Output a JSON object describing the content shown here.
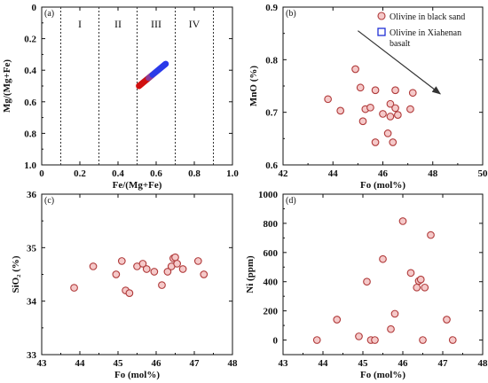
{
  "colors": {
    "olivine_fill": "#f5c9c9",
    "olivine_edge": "#b03a3a",
    "basalt": "#1f2fd6",
    "gradient": [
      "#1a1aff",
      "#3344ee",
      "#7a44b0",
      "#b32020",
      "#e00000"
    ],
    "dotted": "#333333",
    "arrow": "#333333"
  },
  "chart_data": [
    {
      "id": "a",
      "type": "scatter",
      "panel_label": "(a)",
      "xlabel": "Fe/(Mg+Fe)",
      "ylabel": "Mg/(Mg+Fe)",
      "xlim": [
        0,
        1
      ],
      "ylim": [
        1,
        0
      ],
      "y_inverted": true,
      "x_ticks": [
        "0",
        "0.2",
        "0.4",
        "0.6",
        "0.8",
        "1.0"
      ],
      "y_ticks": [
        "0",
        "0.2",
        "0.4",
        "0.6",
        "0.8",
        "1.0"
      ],
      "x_tick_values": [
        0,
        0.2,
        0.4,
        0.6,
        0.8,
        1.0
      ],
      "y_tick_values": [
        0,
        0.2,
        0.4,
        0.6,
        0.8,
        1.0
      ],
      "divider_x": [
        0.1,
        0.3,
        0.5,
        0.7,
        0.9
      ],
      "zones": [
        {
          "label": "I",
          "x": 0.2
        },
        {
          "label": "II",
          "x": 0.4
        },
        {
          "label": "III",
          "x": 0.6
        },
        {
          "label": "IV",
          "x": 0.8
        }
      ],
      "zone_label_y": 0.13,
      "trend": {
        "x": [
          0.51,
          0.65
        ],
        "y": [
          0.5,
          0.36
        ]
      },
      "grid": false
    },
    {
      "id": "b",
      "type": "scatter",
      "panel_label": "(b)",
      "xlabel": "Fo (mol%)",
      "ylabel": "MnO (%)",
      "xlim": [
        42,
        50
      ],
      "ylim": [
        0.6,
        0.9
      ],
      "x_ticks": [
        "42",
        "44",
        "46",
        "48",
        "50"
      ],
      "y_ticks": [
        "0.6",
        "0.7",
        "0.8",
        "0.9"
      ],
      "x_tick_values": [
        42,
        44,
        46,
        48,
        50
      ],
      "y_tick_values": [
        0.6,
        0.7,
        0.8,
        0.9
      ],
      "legend": [
        {
          "label": "Olivine in black sand",
          "marker": "circle"
        },
        {
          "label": "Olivine in Xiahenan basalt",
          "marker": "square"
        }
      ],
      "legend_position": "top-right",
      "arrow": {
        "from": [
          45.0,
          0.855
        ],
        "to": [
          48.3,
          0.735
        ]
      },
      "points": [
        {
          "x": 43.8,
          "y": 0.725
        },
        {
          "x": 44.3,
          "y": 0.703
        },
        {
          "x": 44.9,
          "y": 0.782
        },
        {
          "x": 45.1,
          "y": 0.747
        },
        {
          "x": 45.2,
          "y": 0.683
        },
        {
          "x": 45.3,
          "y": 0.706
        },
        {
          "x": 45.5,
          "y": 0.709
        },
        {
          "x": 45.7,
          "y": 0.643
        },
        {
          "x": 45.7,
          "y": 0.742
        },
        {
          "x": 46.0,
          "y": 0.697
        },
        {
          "x": 46.2,
          "y": 0.66
        },
        {
          "x": 46.3,
          "y": 0.692
        },
        {
          "x": 46.3,
          "y": 0.716
        },
        {
          "x": 46.4,
          "y": 0.643
        },
        {
          "x": 46.5,
          "y": 0.708
        },
        {
          "x": 46.5,
          "y": 0.742
        },
        {
          "x": 46.6,
          "y": 0.695
        },
        {
          "x": 47.1,
          "y": 0.706
        },
        {
          "x": 47.2,
          "y": 0.737
        }
      ],
      "grid": false
    },
    {
      "id": "c",
      "type": "scatter",
      "panel_label": "(c)",
      "xlabel": "Fo (mol%)",
      "ylabel": "SiO₂ (%)",
      "xlim": [
        43,
        48
      ],
      "ylim": [
        33,
        36
      ],
      "x_ticks": [
        "43",
        "44",
        "45",
        "46",
        "47",
        "48"
      ],
      "y_ticks": [
        "33",
        "34",
        "35",
        "36"
      ],
      "x_tick_values": [
        43,
        44,
        45,
        46,
        47,
        48
      ],
      "y_tick_values": [
        33,
        34,
        35,
        36
      ],
      "points": [
        {
          "x": 43.85,
          "y": 34.25
        },
        {
          "x": 44.35,
          "y": 34.65
        },
        {
          "x": 44.95,
          "y": 34.5
        },
        {
          "x": 45.1,
          "y": 34.75
        },
        {
          "x": 45.2,
          "y": 34.2
        },
        {
          "x": 45.3,
          "y": 34.15
        },
        {
          "x": 45.5,
          "y": 34.65
        },
        {
          "x": 45.65,
          "y": 34.7
        },
        {
          "x": 45.75,
          "y": 34.6
        },
        {
          "x": 45.95,
          "y": 34.55
        },
        {
          "x": 46.15,
          "y": 34.3
        },
        {
          "x": 46.3,
          "y": 34.55
        },
        {
          "x": 46.4,
          "y": 34.65
        },
        {
          "x": 46.45,
          "y": 34.8
        },
        {
          "x": 46.5,
          "y": 34.82
        },
        {
          "x": 46.55,
          "y": 34.7
        },
        {
          "x": 46.7,
          "y": 34.6
        },
        {
          "x": 47.1,
          "y": 34.75
        },
        {
          "x": 47.25,
          "y": 34.5
        }
      ],
      "grid": false
    },
    {
      "id": "d",
      "type": "scatter",
      "panel_label": "(d)",
      "xlabel": "Fo (mol%)",
      "ylabel": "Ni (ppm)",
      "xlim": [
        43,
        48
      ],
      "ylim": [
        -100,
        1000
      ],
      "x_ticks": [
        "43",
        "44",
        "45",
        "46",
        "47",
        "48"
      ],
      "y_ticks": [
        "0",
        "200",
        "400",
        "600",
        "800",
        "1000"
      ],
      "x_tick_values": [
        43,
        44,
        45,
        46,
        47,
        48
      ],
      "y_tick_values": [
        0,
        200,
        400,
        600,
        800,
        1000
      ],
      "points": [
        {
          "x": 43.85,
          "y": 0
        },
        {
          "x": 44.35,
          "y": 140
        },
        {
          "x": 44.9,
          "y": 25
        },
        {
          "x": 45.1,
          "y": 400
        },
        {
          "x": 45.2,
          "y": 0
        },
        {
          "x": 45.3,
          "y": 0
        },
        {
          "x": 45.5,
          "y": 555
        },
        {
          "x": 45.7,
          "y": 75
        },
        {
          "x": 45.8,
          "y": 180
        },
        {
          "x": 46.0,
          "y": 815
        },
        {
          "x": 46.2,
          "y": 460
        },
        {
          "x": 46.35,
          "y": 360
        },
        {
          "x": 46.4,
          "y": 405
        },
        {
          "x": 46.45,
          "y": 415
        },
        {
          "x": 46.5,
          "y": 0
        },
        {
          "x": 46.55,
          "y": 360
        },
        {
          "x": 46.7,
          "y": 720
        },
        {
          "x": 47.1,
          "y": 140
        },
        {
          "x": 47.25,
          "y": 0
        }
      ],
      "grid": false
    }
  ]
}
